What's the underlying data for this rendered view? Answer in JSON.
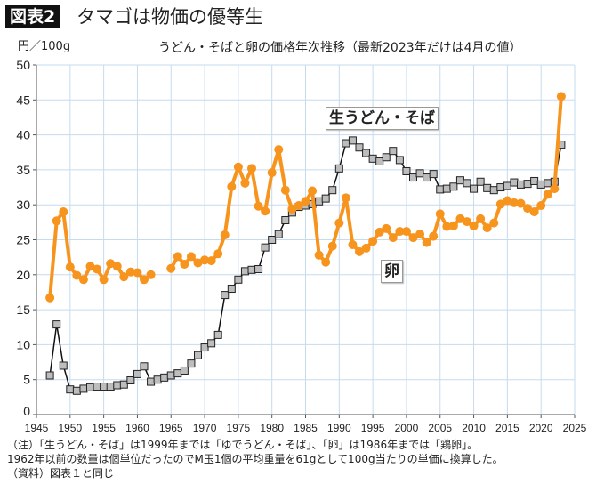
{
  "header": {
    "badge": "図表2",
    "title": "タマゴは物価の優等生"
  },
  "chart_data": {
    "type": "line",
    "title": "うどん・そばと卵の価格年次推移（最新2023年だけは4月の値）",
    "ylabel": "円／100g",
    "xlabel": "",
    "xlim": [
      1945,
      2025
    ],
    "ylim": [
      0,
      50
    ],
    "xticks": [
      1945,
      1950,
      1955,
      1960,
      1965,
      1970,
      1975,
      1980,
      1985,
      1990,
      1995,
      2000,
      2005,
      2010,
      2015,
      2020,
      2025
    ],
    "yticks": [
      0,
      5,
      10,
      15,
      20,
      25,
      30,
      35,
      40,
      45,
      50
    ],
    "grid": true,
    "x_start": 1947,
    "series": [
      {
        "name": "生うどん・そば",
        "color": "#111111",
        "marker": "square",
        "marker_color": "#bdbdbd",
        "values": [
          5.6,
          12.9,
          7.0,
          3.6,
          3.4,
          3.7,
          3.9,
          4.0,
          4.0,
          4.0,
          4.2,
          4.3,
          4.9,
          5.8,
          6.9,
          4.7,
          5.0,
          5.3,
          5.6,
          5.9,
          6.3,
          7.3,
          8.5,
          9.6,
          10.2,
          11.4,
          17.1,
          18.0,
          19.3,
          20.5,
          20.7,
          20.8,
          23.9,
          25.0,
          25.8,
          27.8,
          28.9,
          29.7,
          29.9,
          30.1,
          30.5,
          30.9,
          32.1,
          35.2,
          38.8,
          39.2,
          38.2,
          37.4,
          36.6,
          36.2,
          36.8,
          37.7,
          36.4,
          34.8,
          33.9,
          34.5,
          33.9,
          34.4,
          32.2,
          32.3,
          32.6,
          33.5,
          33.1,
          32.3,
          33.3,
          32.4,
          32.1,
          32.5,
          32.7,
          33.2,
          32.9,
          33.0,
          33.4,
          32.9,
          33.1,
          33.3,
          38.6
        ]
      },
      {
        "name": "卵",
        "color": "#f7941d",
        "marker": "circle",
        "values": [
          16.7,
          27.7,
          29.0,
          21.1,
          19.9,
          19.3,
          21.2,
          20.8,
          19.3,
          21.6,
          21.2,
          19.7,
          20.4,
          20.3,
          19.3,
          20.0,
          null,
          null,
          20.9,
          22.6,
          21.5,
          22.6,
          21.7,
          22.1,
          22.0,
          23.0,
          25.7,
          32.6,
          35.4,
          33.1,
          35.2,
          29.8,
          29.1,
          34.6,
          37.9,
          32.1,
          29.4,
          29.9,
          30.5,
          32.0,
          22.8,
          21.8,
          24.1,
          27.4,
          31.0,
          24.3,
          23.3,
          23.8,
          24.8,
          26.1,
          26.6,
          25.3,
          26.2,
          26.2,
          25.3,
          25.8,
          24.6,
          25.5,
          28.7,
          26.9,
          27.0,
          28.0,
          27.6,
          27.0,
          28.0,
          26.7,
          27.4,
          30.1,
          30.6,
          30.3,
          30.2,
          29.5,
          29.0,
          29.9,
          31.5,
          32.3,
          45.5
        ]
      }
    ]
  },
  "notes": [
    "（注）「生うどん・そば」は1999年までは「ゆでうどん・そば」、「卵」は1986年までは「鶏卵」。",
    "1962年以前の数量は個単位だったのでM玉1個の平均重量を61gとして100g当たりの単価に換算した。",
    "（資料）図表１と同じ"
  ]
}
